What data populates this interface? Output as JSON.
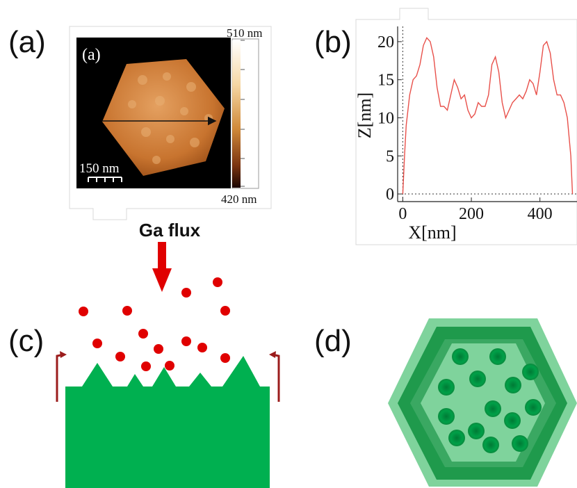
{
  "panels": {
    "a": {
      "label": "(a)",
      "inset_label": "(a)",
      "colorbar_max": "510 nm",
      "colorbar_min": "420 nm",
      "scalebar": "150 nm"
    },
    "b": {
      "label": "(b)"
    },
    "c": {
      "label": "(c)",
      "flux_label": "Ga flux"
    },
    "d": {
      "label": "(d)"
    }
  },
  "colors": {
    "afm_background": "#000000",
    "afm_crystal": "#c8742f",
    "profile_line": "#e8504a",
    "ga_particle": "#e00000",
    "gan_green": "#00b050",
    "hex_light": "#7fd39c",
    "hex_mid": "#2f9e58",
    "return_arrow": "#9b1c1c"
  },
  "chart_data": {
    "type": "line",
    "title": "",
    "xlabel": "X[nm]",
    "ylabel": "Z[nm]",
    "xlim": [
      -15,
      500
    ],
    "ylim": [
      -1,
      22
    ],
    "xticks": [
      0,
      200,
      400
    ],
    "yticks": [
      0,
      5,
      10,
      15,
      20
    ],
    "grid": false,
    "x": [
      0,
      5,
      10,
      20,
      30,
      40,
      50,
      60,
      70,
      80,
      90,
      100,
      110,
      120,
      130,
      140,
      150,
      160,
      170,
      180,
      190,
      200,
      210,
      220,
      230,
      240,
      250,
      260,
      270,
      280,
      290,
      300,
      310,
      320,
      330,
      340,
      350,
      360,
      370,
      380,
      390,
      400,
      410,
      420,
      430,
      440,
      450,
      460,
      470,
      480,
      490,
      495
    ],
    "y": [
      0,
      5,
      9,
      13,
      15,
      15.5,
      17,
      19.5,
      20.5,
      20,
      18,
      14,
      11.5,
      11.5,
      11,
      13,
      15,
      14,
      12.5,
      13,
      11,
      10,
      10.5,
      12,
      11.5,
      11.5,
      13,
      17,
      18,
      16,
      12,
      10,
      11,
      12,
      12.5,
      13,
      12.5,
      13.5,
      15,
      14.5,
      13,
      16,
      19.5,
      20,
      18.5,
      15,
      13,
      13,
      12,
      10,
      5,
      0
    ]
  }
}
